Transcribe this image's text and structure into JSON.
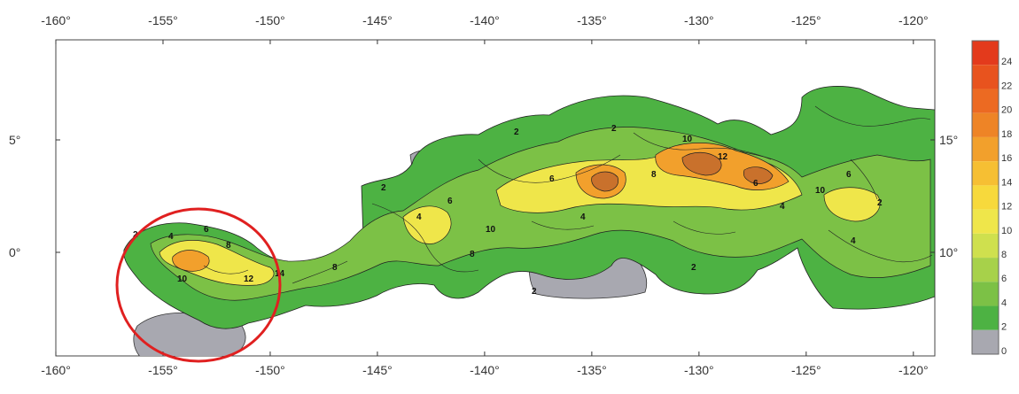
{
  "map": {
    "x_ticks_top": [
      "-160°",
      "-155°",
      "-150°",
      "-145°",
      "-140°",
      "-135°",
      "-130°",
      "-125°",
      "-120°"
    ],
    "x_ticks_bottom": [
      "-160°",
      "-155°",
      "-150°",
      "-145°",
      "-140°",
      "-135°",
      "-130°",
      "-125°",
      "-120°"
    ],
    "y_ticks_left": [
      "5°",
      "0°"
    ],
    "y_ticks_right": [
      "15°",
      "10°"
    ],
    "contour_labels": [
      "2",
      "4",
      "6",
      "8",
      "10",
      "12",
      "14",
      "2",
      "4",
      "6",
      "8",
      "10",
      "2",
      "6",
      "4",
      "2",
      "8",
      "10",
      "12",
      "6",
      "4",
      "2",
      "10",
      "6",
      "2",
      "4",
      "2",
      "8"
    ],
    "highlight": {
      "shape": "circle",
      "color": "#e02020"
    }
  },
  "colorbar": {
    "labels": [
      "24",
      "22",
      "20",
      "18",
      "16",
      "14",
      "12",
      "10",
      "8",
      "6",
      "4",
      "2",
      "0"
    ],
    "colors": [
      "#e33a1c",
      "#e8531e",
      "#ec6a22",
      "#ee8426",
      "#f2a02c",
      "#f6bf33",
      "#f7d93c",
      "#efe64a",
      "#cfe04e",
      "#a7d14a",
      "#7cc146",
      "#4db243",
      "#a8a8b0"
    ]
  }
}
